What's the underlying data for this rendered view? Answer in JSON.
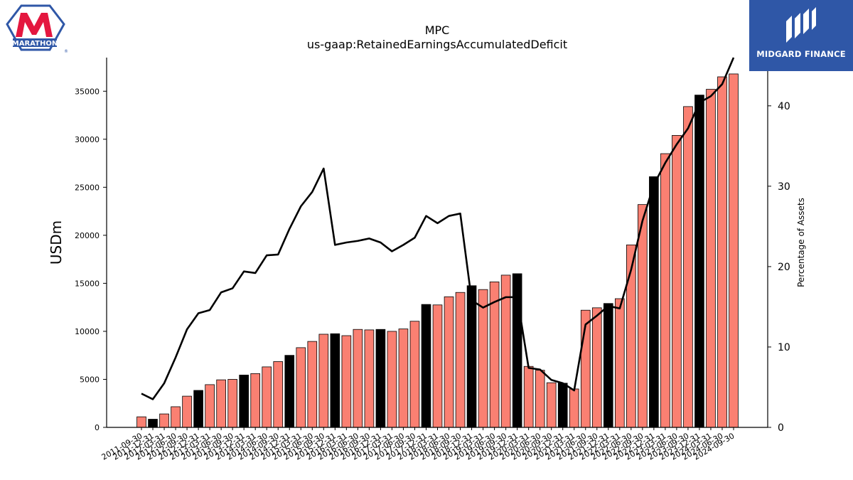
{
  "logos": {
    "left": {
      "name": "MARATHON",
      "registered": "®"
    },
    "right": {
      "name": "MIDGARD FINANCE"
    }
  },
  "chart_data": {
    "type": "bar",
    "title": "MPC",
    "subtitle": "us-gaap:RetainedEarningsAccumulatedDeficit",
    "ylabel": "USDm",
    "y2label": "Percentage of Assets",
    "ylim": [
      0,
      38500
    ],
    "y2lim": [
      0,
      46
    ],
    "yticks": [
      0,
      5000,
      10000,
      15000,
      20000,
      25000,
      30000,
      35000
    ],
    "y2ticks": [
      0,
      10,
      20,
      30,
      40
    ],
    "grid": false,
    "colors": {
      "bar": "#fa8072",
      "bar_highlight": "#000000",
      "line": "#000000"
    },
    "categories": [
      "2011-09-30",
      "2011-12-31",
      "2012-03-31",
      "2012-06-30",
      "2012-09-30",
      "2012-12-31",
      "2013-03-31",
      "2013-06-30",
      "2013-09-30",
      "2013-12-31",
      "2014-03-31",
      "2014-06-30",
      "2014-09-30",
      "2014-12-31",
      "2015-03-31",
      "2015-06-30",
      "2015-09-30",
      "2015-12-31",
      "2016-03-31",
      "2016-06-30",
      "2016-09-30",
      "2016-12-31",
      "2017-03-31",
      "2017-06-30",
      "2017-09-30",
      "2017-12-31",
      "2018-03-31",
      "2018-06-30",
      "2018-09-30",
      "2018-12-31",
      "2019-03-31",
      "2019-06-30",
      "2019-09-30",
      "2019-12-31",
      "2020-03-31",
      "2020-06-30",
      "2020-09-30",
      "2020-12-31",
      "2021-03-31",
      "2021-06-30",
      "2021-09-30",
      "2021-12-31",
      "2022-03-31",
      "2022-06-30",
      "2022-09-30",
      "2022-12-31",
      "2023-03-31",
      "2023-06-30",
      "2023-09-30",
      "2023-12-31",
      "2024-03-31",
      "2024-06-30",
      "2024-09-30"
    ],
    "series": [
      {
        "type": "bar",
        "axis": "left",
        "values": [
          1100,
          850,
          1400,
          2150,
          3250,
          3850,
          4450,
          4950,
          5000,
          5450,
          5600,
          6300,
          6850,
          7500,
          8300,
          8950,
          9700,
          9750,
          9550,
          10200,
          10150,
          10200,
          10000,
          10250,
          11050,
          12800,
          12750,
          13600,
          14050,
          14750,
          14350,
          15150,
          15850,
          16000,
          6350,
          5950,
          4650,
          4600,
          4000,
          12200,
          12450,
          12900,
          13400,
          19000,
          23200,
          26100,
          28500,
          30400,
          33400,
          34600,
          35200,
          36500,
          36800
        ],
        "highlight": [
          false,
          true,
          false,
          false,
          false,
          true,
          false,
          false,
          false,
          true,
          false,
          false,
          false,
          true,
          false,
          false,
          false,
          true,
          false,
          false,
          false,
          true,
          false,
          false,
          false,
          true,
          false,
          false,
          false,
          true,
          false,
          false,
          false,
          true,
          false,
          false,
          false,
          true,
          false,
          false,
          false,
          true,
          false,
          false,
          false,
          true,
          false,
          false,
          false,
          true,
          false,
          false,
          false
        ]
      },
      {
        "type": "line",
        "axis": "right",
        "values": [
          4.2,
          3.5,
          5.5,
          8.7,
          12.2,
          14.2,
          14.6,
          16.8,
          17.3,
          19.4,
          19.2,
          21.4,
          21.5,
          24.7,
          27.5,
          29.3,
          32.2,
          22.7,
          23.0,
          23.2,
          23.5,
          23.0,
          21.9,
          22.7,
          23.6,
          26.3,
          25.4,
          26.3,
          26.6,
          15.8,
          14.9,
          15.6,
          16.2,
          16.2,
          7.4,
          7.2,
          5.9,
          5.5,
          4.6,
          12.8,
          13.9,
          15.1,
          14.8,
          19.6,
          25.7,
          30.2,
          32.9,
          35.2,
          37.2,
          40.4,
          41.2,
          42.7,
          46.0
        ]
      }
    ]
  }
}
